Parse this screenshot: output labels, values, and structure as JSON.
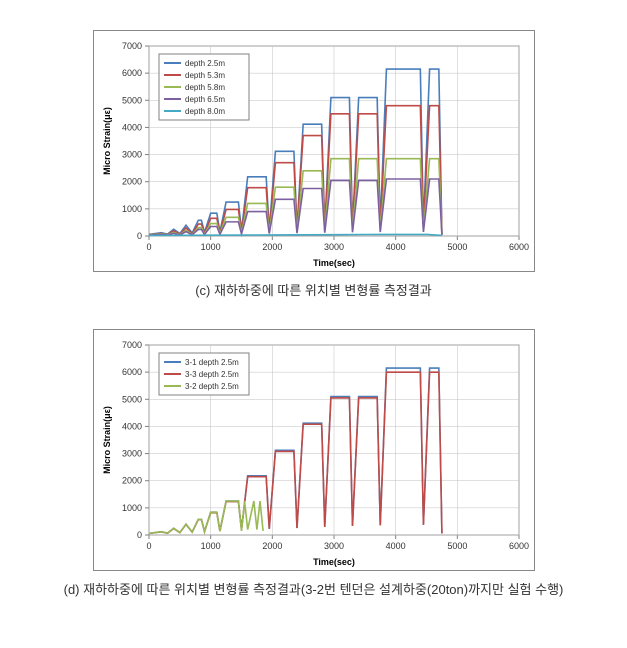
{
  "chart_c": {
    "type": "line",
    "x_title": "Time(sec)",
    "y_title": "Micro Strain(με)",
    "xlim": [
      0,
      6000
    ],
    "ylim": [
      0,
      7000
    ],
    "xtick_step": 1000,
    "ytick_step": 1000,
    "background_color": "#ffffff",
    "grid_color": "#c0c0c0",
    "axis_color": "#808080",
    "label_fontsize": 9,
    "title_fontsize": 9,
    "legend_position": "top-left",
    "series": [
      {
        "name": "depth 2.5m",
        "color": "#4a7ebb",
        "data": [
          [
            0,
            60
          ],
          [
            200,
            120
          ],
          [
            300,
            70
          ],
          [
            400,
            250
          ],
          [
            500,
            90
          ],
          [
            600,
            400
          ],
          [
            700,
            110
          ],
          [
            800,
            580
          ],
          [
            850,
            580
          ],
          [
            900,
            130
          ],
          [
            1000,
            840
          ],
          [
            1100,
            840
          ],
          [
            1150,
            150
          ],
          [
            1250,
            1250
          ],
          [
            1450,
            1250
          ],
          [
            1500,
            190
          ],
          [
            1600,
            2180
          ],
          [
            1900,
            2180
          ],
          [
            1950,
            230
          ],
          [
            2050,
            3120
          ],
          [
            2350,
            3120
          ],
          [
            2400,
            260
          ],
          [
            2500,
            4120
          ],
          [
            2800,
            4120
          ],
          [
            2850,
            300
          ],
          [
            2950,
            5100
          ],
          [
            3250,
            5100
          ],
          [
            3300,
            340
          ],
          [
            3400,
            5100
          ],
          [
            3700,
            5100
          ],
          [
            3750,
            360
          ],
          [
            3850,
            6150
          ],
          [
            4400,
            6150
          ],
          [
            4450,
            380
          ],
          [
            4550,
            6150
          ],
          [
            4700,
            6150
          ],
          [
            4750,
            60
          ]
        ]
      },
      {
        "name": "depth 5.3m",
        "color": "#be4b48",
        "data": [
          [
            0,
            50
          ],
          [
            200,
            90
          ],
          [
            300,
            55
          ],
          [
            400,
            190
          ],
          [
            500,
            65
          ],
          [
            600,
            300
          ],
          [
            700,
            80
          ],
          [
            800,
            440
          ],
          [
            850,
            440
          ],
          [
            900,
            95
          ],
          [
            1000,
            650
          ],
          [
            1100,
            650
          ],
          [
            1150,
            110
          ],
          [
            1250,
            980
          ],
          [
            1450,
            980
          ],
          [
            1500,
            140
          ],
          [
            1600,
            1780
          ],
          [
            1900,
            1780
          ],
          [
            1950,
            170
          ],
          [
            2050,
            2700
          ],
          [
            2350,
            2700
          ],
          [
            2400,
            200
          ],
          [
            2500,
            3700
          ],
          [
            2800,
            3700
          ],
          [
            2850,
            230
          ],
          [
            2950,
            4500
          ],
          [
            3250,
            4500
          ],
          [
            3300,
            260
          ],
          [
            3400,
            4500
          ],
          [
            3700,
            4500
          ],
          [
            3750,
            280
          ],
          [
            3850,
            4800
          ],
          [
            4400,
            4800
          ],
          [
            4450,
            300
          ],
          [
            4550,
            4800
          ],
          [
            4700,
            4800
          ],
          [
            4750,
            50
          ]
        ]
      },
      {
        "name": "depth 5.8m",
        "color": "#98b954",
        "data": [
          [
            0,
            40
          ],
          [
            200,
            70
          ],
          [
            300,
            45
          ],
          [
            400,
            130
          ],
          [
            500,
            50
          ],
          [
            600,
            210
          ],
          [
            700,
            60
          ],
          [
            800,
            310
          ],
          [
            850,
            310
          ],
          [
            900,
            70
          ],
          [
            1000,
            460
          ],
          [
            1100,
            460
          ],
          [
            1150,
            80
          ],
          [
            1250,
            690
          ],
          [
            1450,
            690
          ],
          [
            1500,
            100
          ],
          [
            1600,
            1200
          ],
          [
            1900,
            1200
          ],
          [
            1950,
            120
          ],
          [
            2050,
            1800
          ],
          [
            2350,
            1800
          ],
          [
            2400,
            140
          ],
          [
            2500,
            2400
          ],
          [
            2800,
            2400
          ],
          [
            2850,
            160
          ],
          [
            2950,
            2850
          ],
          [
            3250,
            2850
          ],
          [
            3300,
            180
          ],
          [
            3400,
            2850
          ],
          [
            3700,
            2850
          ],
          [
            3750,
            190
          ],
          [
            3850,
            2850
          ],
          [
            4400,
            2850
          ],
          [
            4450,
            200
          ],
          [
            4550,
            2850
          ],
          [
            4700,
            2850
          ],
          [
            4750,
            40
          ]
        ]
      },
      {
        "name": "depth 6.5m",
        "color": "#7d60a0",
        "data": [
          [
            0,
            35
          ],
          [
            200,
            55
          ],
          [
            300,
            38
          ],
          [
            400,
            100
          ],
          [
            500,
            42
          ],
          [
            600,
            160
          ],
          [
            700,
            48
          ],
          [
            800,
            240
          ],
          [
            850,
            240
          ],
          [
            900,
            55
          ],
          [
            1000,
            350
          ],
          [
            1100,
            350
          ],
          [
            1150,
            62
          ],
          [
            1250,
            520
          ],
          [
            1450,
            520
          ],
          [
            1500,
            75
          ],
          [
            1600,
            900
          ],
          [
            1900,
            900
          ],
          [
            1950,
            90
          ],
          [
            2050,
            1350
          ],
          [
            2350,
            1350
          ],
          [
            2400,
            105
          ],
          [
            2500,
            1750
          ],
          [
            2800,
            1750
          ],
          [
            2850,
            120
          ],
          [
            2950,
            2050
          ],
          [
            3250,
            2050
          ],
          [
            3300,
            135
          ],
          [
            3400,
            2050
          ],
          [
            3700,
            2050
          ],
          [
            3750,
            145
          ],
          [
            3850,
            2100
          ],
          [
            4400,
            2100
          ],
          [
            4450,
            150
          ],
          [
            4550,
            2100
          ],
          [
            4700,
            2100
          ],
          [
            4750,
            35
          ]
        ]
      },
      {
        "name": "depth 8.0m",
        "color": "#46aac5",
        "data": [
          [
            0,
            20
          ],
          [
            500,
            25
          ],
          [
            1000,
            30
          ],
          [
            1500,
            35
          ],
          [
            2000,
            40
          ],
          [
            2500,
            45
          ],
          [
            3000,
            50
          ],
          [
            3500,
            55
          ],
          [
            4000,
            58
          ],
          [
            4500,
            60
          ],
          [
            4750,
            20
          ]
        ]
      }
    ]
  },
  "caption_c": "(c) 재하하중에 따른 위치별 변형률 측정결과",
  "chart_d": {
    "type": "line",
    "x_title": "Time(sec)",
    "y_title": "Micro Strain(με)",
    "xlim": [
      0,
      6000
    ],
    "ylim": [
      0,
      7000
    ],
    "xtick_step": 1000,
    "ytick_step": 1000,
    "background_color": "#ffffff",
    "grid_color": "#c0c0c0",
    "axis_color": "#808080",
    "label_fontsize": 9,
    "title_fontsize": 9,
    "legend_position": "top-left",
    "series": [
      {
        "name": "3-1 depth 2.5m",
        "color": "#4a7ebb",
        "data": [
          [
            0,
            60
          ],
          [
            200,
            120
          ],
          [
            300,
            70
          ],
          [
            400,
            250
          ],
          [
            500,
            90
          ],
          [
            600,
            400
          ],
          [
            700,
            110
          ],
          [
            800,
            580
          ],
          [
            850,
            580
          ],
          [
            900,
            130
          ],
          [
            1000,
            840
          ],
          [
            1100,
            840
          ],
          [
            1150,
            150
          ],
          [
            1250,
            1250
          ],
          [
            1450,
            1250
          ],
          [
            1500,
            190
          ],
          [
            1600,
            2180
          ],
          [
            1900,
            2180
          ],
          [
            1950,
            230
          ],
          [
            2050,
            3120
          ],
          [
            2350,
            3120
          ],
          [
            2400,
            260
          ],
          [
            2500,
            4120
          ],
          [
            2800,
            4120
          ],
          [
            2850,
            300
          ],
          [
            2950,
            5100
          ],
          [
            3250,
            5100
          ],
          [
            3300,
            340
          ],
          [
            3400,
            5100
          ],
          [
            3700,
            5100
          ],
          [
            3750,
            360
          ],
          [
            3850,
            6150
          ],
          [
            4400,
            6150
          ],
          [
            4450,
            380
          ],
          [
            4550,
            6150
          ],
          [
            4700,
            6150
          ],
          [
            4750,
            60
          ]
        ]
      },
      {
        "name": "3-3 depth 2.5m",
        "color": "#be4b48",
        "data": [
          [
            0,
            55
          ],
          [
            200,
            115
          ],
          [
            300,
            65
          ],
          [
            400,
            240
          ],
          [
            500,
            85
          ],
          [
            600,
            390
          ],
          [
            700,
            105
          ],
          [
            800,
            570
          ],
          [
            850,
            570
          ],
          [
            900,
            125
          ],
          [
            1000,
            820
          ],
          [
            1100,
            820
          ],
          [
            1150,
            145
          ],
          [
            1250,
            1230
          ],
          [
            1450,
            1230
          ],
          [
            1500,
            185
          ],
          [
            1600,
            2150
          ],
          [
            1900,
            2150
          ],
          [
            1950,
            225
          ],
          [
            2050,
            3080
          ],
          [
            2350,
            3080
          ],
          [
            2400,
            255
          ],
          [
            2500,
            4080
          ],
          [
            2800,
            4080
          ],
          [
            2850,
            295
          ],
          [
            2950,
            5050
          ],
          [
            3250,
            5050
          ],
          [
            3300,
            335
          ],
          [
            3400,
            5050
          ],
          [
            3700,
            5050
          ],
          [
            3750,
            355
          ],
          [
            3850,
            6000
          ],
          [
            4400,
            6000
          ],
          [
            4450,
            375
          ],
          [
            4550,
            6000
          ],
          [
            4700,
            6000
          ],
          [
            4750,
            55
          ]
        ]
      },
      {
        "name": "3-2 depth 2.5m",
        "color": "#98b954",
        "data": [
          [
            0,
            60
          ],
          [
            200,
            120
          ],
          [
            300,
            70
          ],
          [
            400,
            250
          ],
          [
            500,
            90
          ],
          [
            600,
            400
          ],
          [
            700,
            110
          ],
          [
            800,
            580
          ],
          [
            850,
            580
          ],
          [
            900,
            130
          ],
          [
            1000,
            840
          ],
          [
            1100,
            840
          ],
          [
            1150,
            150
          ],
          [
            1250,
            1250
          ],
          [
            1450,
            1250
          ],
          [
            1500,
            150
          ],
          [
            1550,
            1250
          ],
          [
            1600,
            200
          ],
          [
            1700,
            1250
          ],
          [
            1750,
            200
          ],
          [
            1800,
            1250
          ],
          [
            1850,
            150
          ]
        ]
      }
    ]
  },
  "caption_d": "(d) 재하하중에 따른 위치별 변형률 측정결과(3-2번 텐던은 설계하중(20ton)까지만 실험 수행)"
}
